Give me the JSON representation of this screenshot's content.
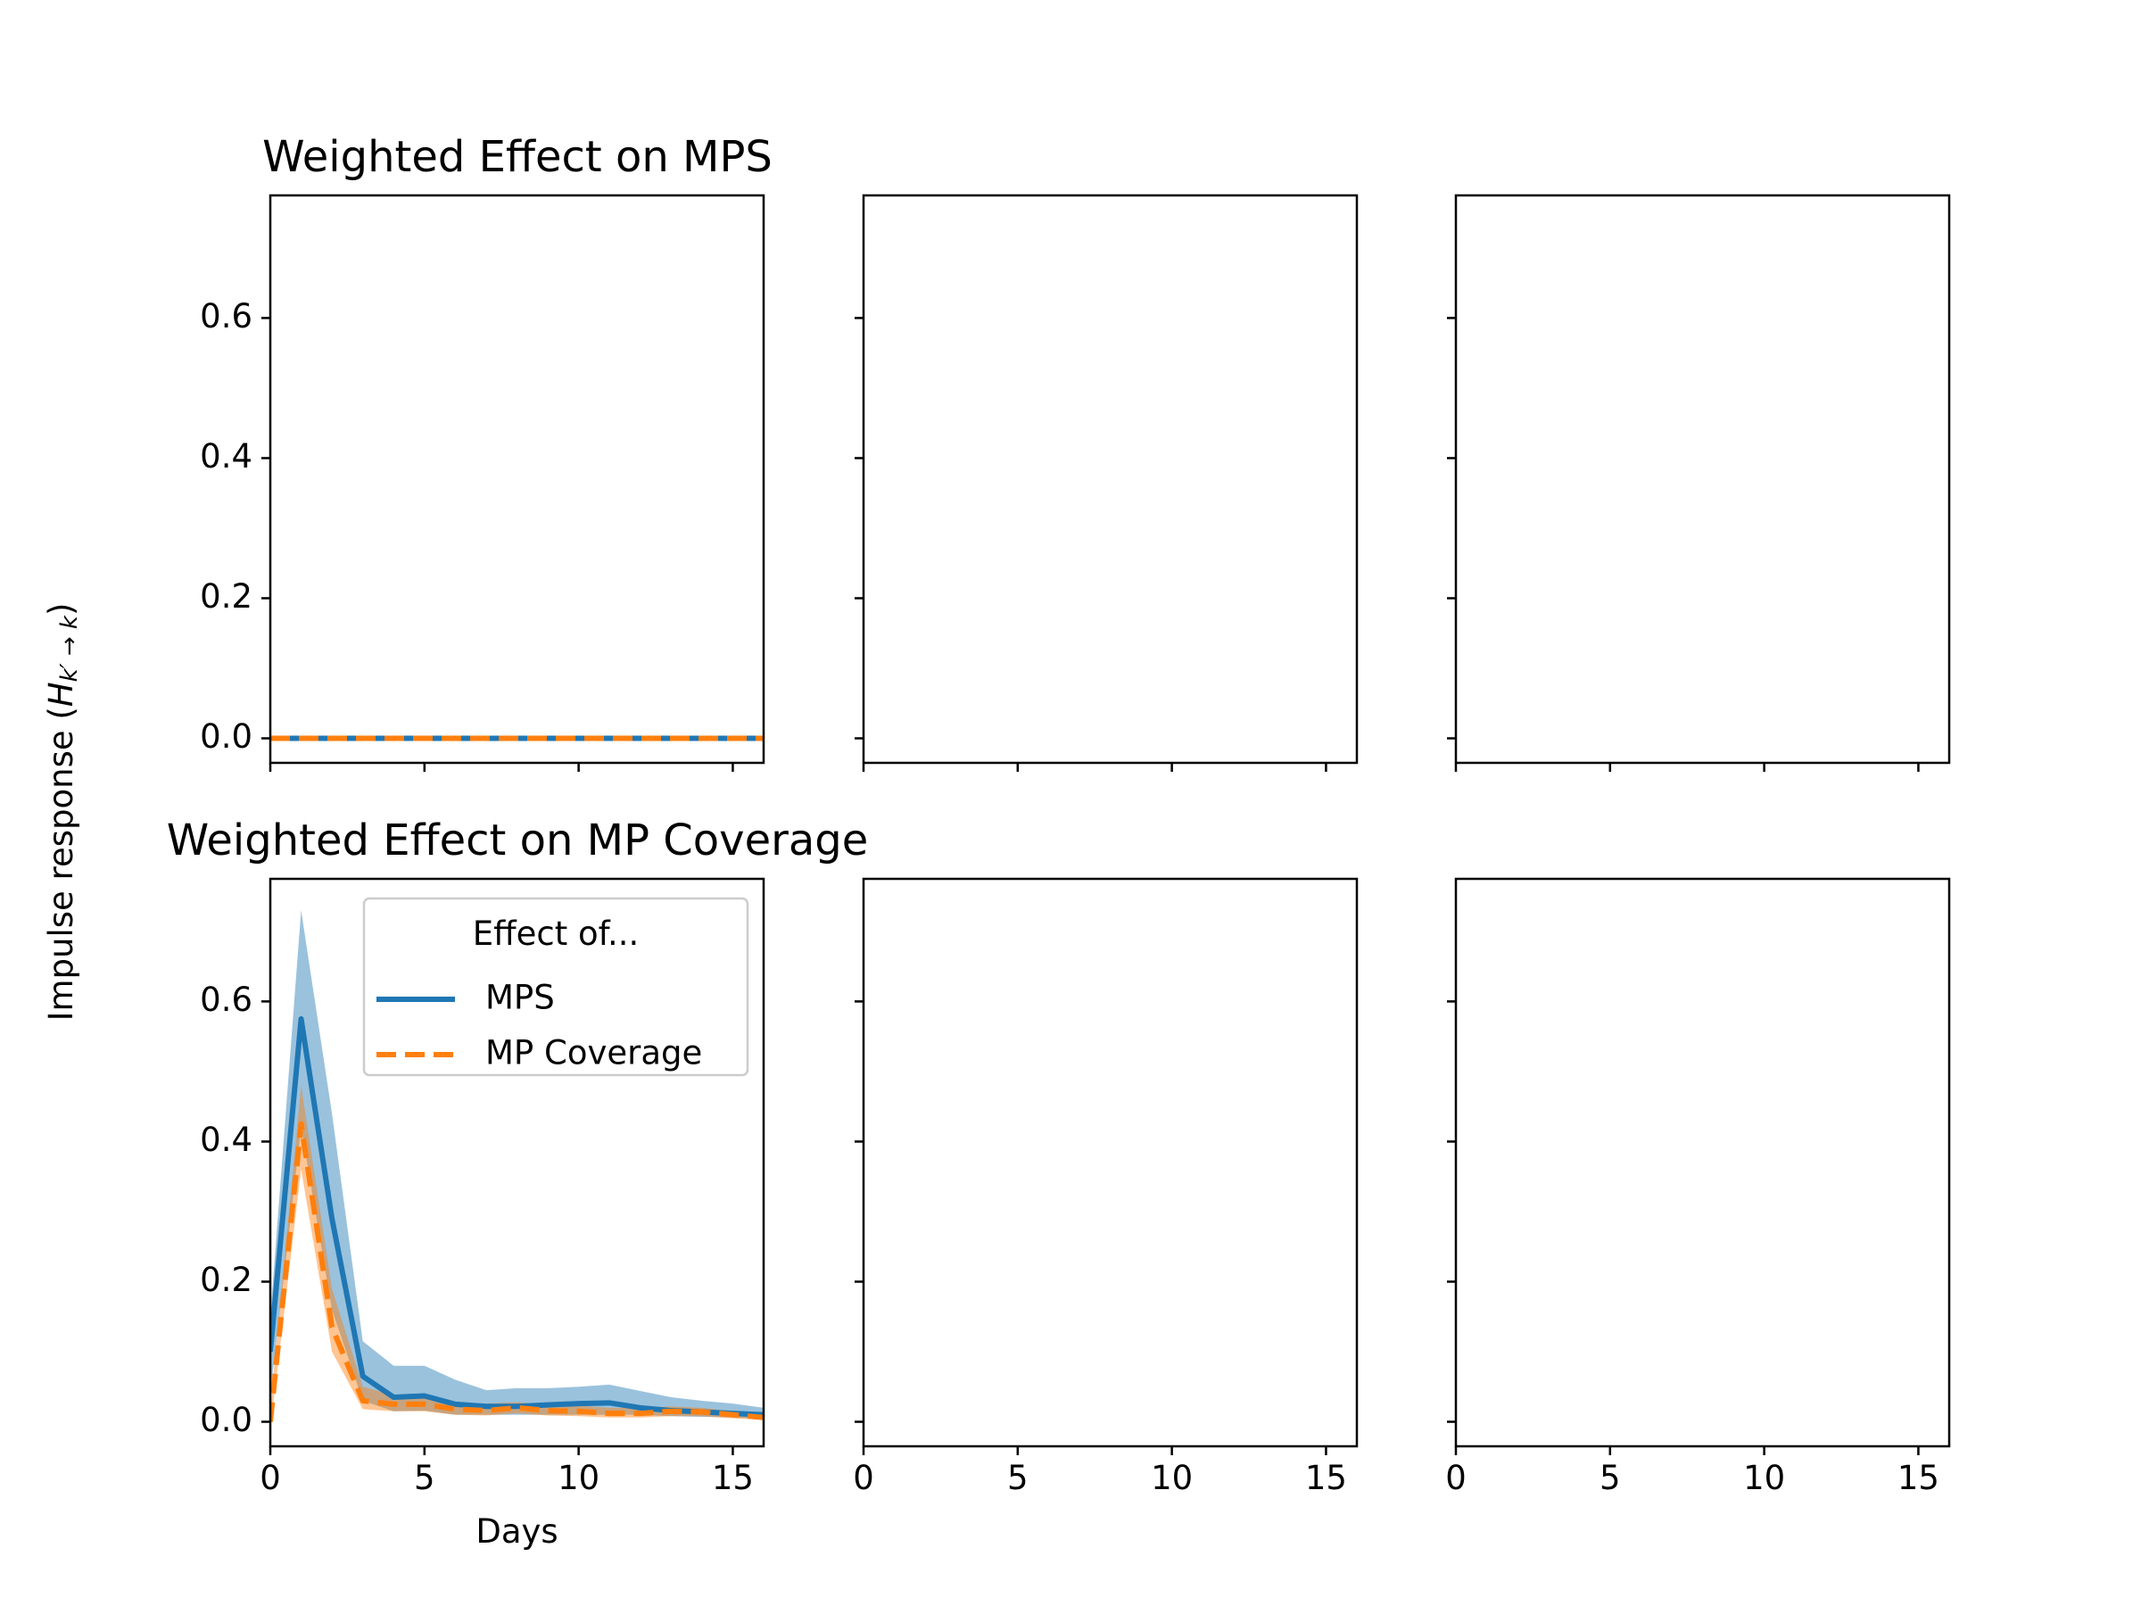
{
  "colors": {
    "mps": "#1f77b4",
    "mp_coverage": "#ff7f0e",
    "mps_band": "#1f77b4",
    "mp_coverage_band": "#ff7f0e",
    "axes": "#000000"
  },
  "figure": {
    "ylabel_main": "Impulse response (",
    "ylabel_math": "H",
    "ylabel_sub": "k′ → k",
    "ylabel_close": ")"
  },
  "chart_data": [
    {
      "type": "line",
      "position": "top-left",
      "title": "Weighted Effect on MPS",
      "xlabel": "",
      "ylabel": "",
      "xlim": [
        0,
        16
      ],
      "ylim": [
        -0.035,
        0.775
      ],
      "xticks": [
        0,
        5,
        10,
        15
      ],
      "yticks": [
        0.0,
        0.2,
        0.4,
        0.6
      ],
      "ytick_labels": [
        "0.0",
        "0.2",
        "0.4",
        "0.6"
      ],
      "show_xtick_labels": false,
      "show_ytick_labels": true,
      "grid": false,
      "series": [
        {
          "name": "MPS",
          "x": [
            0,
            1,
            2,
            3,
            4,
            5,
            6,
            7,
            8,
            9,
            10,
            11,
            12,
            13,
            14,
            15,
            16
          ],
          "values": [
            0,
            0,
            0,
            0,
            0,
            0,
            0,
            0,
            0,
            0,
            0,
            0,
            0,
            0,
            0,
            0,
            0
          ]
        },
        {
          "name": "MP Coverage",
          "x": [
            0,
            1,
            2,
            3,
            4,
            5,
            6,
            7,
            8,
            9,
            10,
            11,
            12,
            13,
            14,
            15,
            16
          ],
          "values": [
            0,
            0,
            0,
            0,
            0,
            0,
            0,
            0,
            0,
            0,
            0,
            0,
            0,
            0,
            0,
            0,
            0
          ]
        }
      ]
    },
    {
      "type": "line",
      "position": "top-middle",
      "title": "",
      "xlim": [
        0,
        16
      ],
      "ylim": [
        -0.035,
        0.775
      ],
      "xticks": [
        0,
        5,
        10,
        15
      ],
      "yticks": [
        0.0,
        0.2,
        0.4,
        0.6
      ],
      "show_xtick_labels": false,
      "show_ytick_labels": false,
      "grid": false,
      "series": []
    },
    {
      "type": "line",
      "position": "top-right",
      "title": "",
      "xlim": [
        0,
        16
      ],
      "ylim": [
        -0.035,
        0.775
      ],
      "xticks": [
        0,
        5,
        10,
        15
      ],
      "yticks": [
        0.0,
        0.2,
        0.4,
        0.6
      ],
      "show_xtick_labels": false,
      "show_ytick_labels": false,
      "grid": false,
      "series": []
    },
    {
      "type": "line",
      "position": "bottom-left",
      "title": "Weighted Effect on MP Coverage",
      "xlabel": "Days",
      "ylabel": "",
      "xlim": [
        0,
        16
      ],
      "ylim": [
        -0.035,
        0.775
      ],
      "xticks": [
        0,
        5,
        10,
        15
      ],
      "xtick_labels": [
        "0",
        "5",
        "10",
        "15"
      ],
      "yticks": [
        0.0,
        0.2,
        0.4,
        0.6
      ],
      "ytick_labels": [
        "0.0",
        "0.2",
        "0.4",
        "0.6"
      ],
      "show_xtick_labels": true,
      "show_ytick_labels": true,
      "grid": false,
      "legend": {
        "title": "Effect of...",
        "placement": "upper right",
        "entries": [
          "MPS",
          "MP Coverage"
        ]
      },
      "series": [
        {
          "name": "MPS",
          "x": [
            0,
            1,
            2,
            3,
            4,
            5,
            6,
            7,
            8,
            9,
            10,
            11,
            12,
            13,
            14,
            15,
            16
          ],
          "values": [
            0.1,
            0.575,
            0.29,
            0.065,
            0.035,
            0.037,
            0.025,
            0.022,
            0.022,
            0.024,
            0.026,
            0.027,
            0.02,
            0.016,
            0.014,
            0.012,
            0.01
          ],
          "band_upper": [
            0.15,
            0.73,
            0.44,
            0.115,
            0.08,
            0.08,
            0.06,
            0.045,
            0.048,
            0.048,
            0.05,
            0.053,
            0.044,
            0.035,
            0.03,
            0.026,
            0.02
          ],
          "band_lower": [
            0.04,
            0.42,
            0.16,
            0.03,
            0.015,
            0.016,
            0.01,
            0.01,
            0.01,
            0.01,
            0.01,
            0.01,
            0.01,
            0.008,
            0.007,
            0.006,
            0.004
          ]
        },
        {
          "name": "MP Coverage",
          "x": [
            0,
            1,
            2,
            3,
            4,
            5,
            6,
            7,
            8,
            9,
            10,
            11,
            12,
            13,
            14,
            15,
            16
          ],
          "values": [
            0.0,
            0.425,
            0.135,
            0.03,
            0.025,
            0.025,
            0.018,
            0.016,
            0.02,
            0.016,
            0.015,
            0.012,
            0.012,
            0.015,
            0.014,
            0.01,
            0.006
          ],
          "band_upper": [
            0.02,
            0.48,
            0.19,
            0.05,
            0.038,
            0.036,
            0.028,
            0.026,
            0.028,
            0.024,
            0.023,
            0.02,
            0.02,
            0.022,
            0.02,
            0.015,
            0.01
          ],
          "band_lower": [
            -0.01,
            0.36,
            0.1,
            0.018,
            0.015,
            0.015,
            0.01,
            0.009,
            0.012,
            0.009,
            0.008,
            0.006,
            0.006,
            0.008,
            0.008,
            0.005,
            0.003
          ]
        }
      ]
    },
    {
      "type": "line",
      "position": "bottom-middle",
      "title": "",
      "xlim": [
        0,
        16
      ],
      "ylim": [
        -0.035,
        0.775
      ],
      "xticks": [
        0,
        5,
        10,
        15
      ],
      "xtick_labels": [
        "0",
        "5",
        "10",
        "15"
      ],
      "yticks": [
        0.0,
        0.2,
        0.4,
        0.6
      ],
      "show_xtick_labels": true,
      "show_ytick_labels": false,
      "grid": false,
      "series": []
    },
    {
      "type": "line",
      "position": "bottom-right",
      "title": "",
      "xlim": [
        0,
        16
      ],
      "ylim": [
        -0.035,
        0.775
      ],
      "xticks": [
        0,
        5,
        10,
        15
      ],
      "xtick_labels": [
        "0",
        "5",
        "10",
        "15"
      ],
      "yticks": [
        0.0,
        0.2,
        0.4,
        0.6
      ],
      "show_xtick_labels": true,
      "show_ytick_labels": false,
      "grid": false,
      "series": []
    }
  ]
}
